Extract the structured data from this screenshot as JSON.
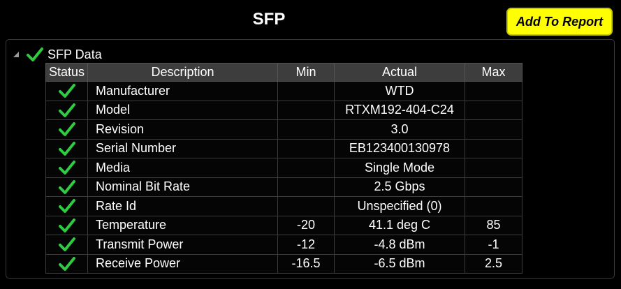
{
  "header": {
    "title": "SFP",
    "add_to_report_label": "Add To Report"
  },
  "tree": {
    "node_label": "SFP Data",
    "icons": {
      "expander": "collapse-triangle-icon",
      "status": "checkmark-icon"
    }
  },
  "colors": {
    "background": "#000000",
    "button": "#ffff00",
    "check": "#2ecc40",
    "header_row": "#3d3d3d"
  },
  "table": {
    "headers": {
      "status": "Status",
      "description": "Description",
      "min": "Min",
      "actual": "Actual",
      "max": "Max"
    },
    "rows": [
      {
        "status": "pass",
        "description": "Manufacturer",
        "min": "",
        "actual": "WTD",
        "max": ""
      },
      {
        "status": "pass",
        "description": "Model",
        "min": "",
        "actual": "RTXM192-404-C24",
        "max": ""
      },
      {
        "status": "pass",
        "description": "Revision",
        "min": "",
        "actual": "3.0",
        "max": ""
      },
      {
        "status": "pass",
        "description": "Serial Number",
        "min": "",
        "actual": "EB123400130978",
        "max": ""
      },
      {
        "status": "pass",
        "description": "Media",
        "min": "",
        "actual": "Single Mode",
        "max": ""
      },
      {
        "status": "pass",
        "description": "Nominal Bit Rate",
        "min": "",
        "actual": "2.5 Gbps",
        "max": ""
      },
      {
        "status": "pass",
        "description": "Rate Id",
        "min": "",
        "actual": "Unspecified (0)",
        "max": ""
      },
      {
        "status": "pass",
        "description": "Temperature",
        "min": "-20",
        "actual": "41.1 deg C",
        "max": "85"
      },
      {
        "status": "pass",
        "description": "Transmit Power",
        "min": "-12",
        "actual": "-4.8 dBm",
        "max": "-1"
      },
      {
        "status": "pass",
        "description": "Receive Power",
        "min": "-16.5",
        "actual": "-6.5 dBm",
        "max": "2.5"
      }
    ]
  }
}
